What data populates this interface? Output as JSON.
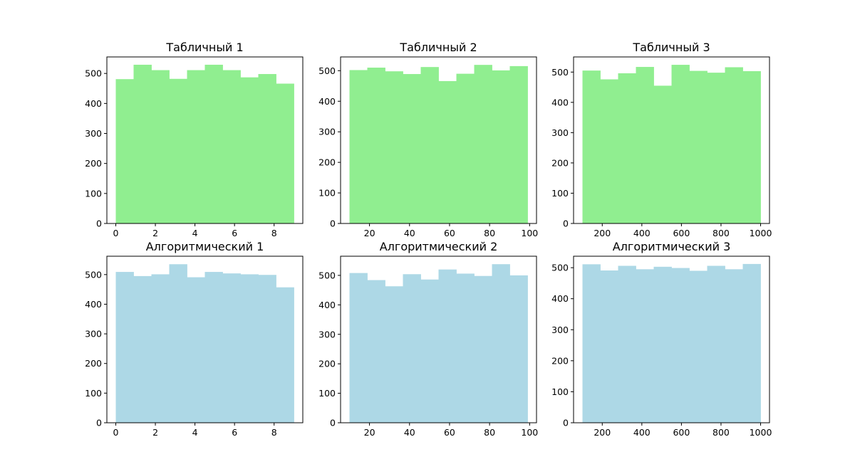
{
  "chart_data": [
    {
      "type": "bar",
      "title": "Табличный 1",
      "color": "#90ee90",
      "bin_edges": [
        0,
        0.9,
        1.8,
        2.7,
        3.6,
        4.5,
        5.4,
        6.3,
        7.2,
        8.1,
        9.0
      ],
      "values": [
        481,
        529,
        511,
        482,
        511,
        529,
        511,
        487,
        498,
        466
      ],
      "xlim": [
        -0.45,
        9.45
      ],
      "ylim": [
        0,
        555
      ],
      "xticks": [
        0,
        2,
        4,
        6,
        8
      ],
      "xtick_labels": [
        "0",
        "2",
        "4",
        "6",
        "8"
      ],
      "yticks": [
        0,
        100,
        200,
        300,
        400,
        500
      ],
      "ytick_labels": [
        "0",
        "100",
        "200",
        "300",
        "400",
        "500"
      ]
    },
    {
      "type": "bar",
      "title": "Табличный 2",
      "color": "#90ee90",
      "bin_edges": [
        10,
        18.9,
        27.8,
        36.7,
        45.6,
        54.5,
        63.4,
        72.3,
        81.2,
        90.1,
        99
      ],
      "values": [
        502,
        510,
        498,
        489,
        512,
        466,
        490,
        519,
        501,
        515
      ],
      "xlim": [
        5.55,
        103.45
      ],
      "ylim": [
        0,
        545
      ],
      "xticks": [
        20,
        40,
        60,
        80,
        100
      ],
      "xtick_labels": [
        "20",
        "40",
        "60",
        "80",
        "100"
      ],
      "yticks": [
        0,
        100,
        200,
        300,
        400,
        500
      ],
      "ytick_labels": [
        "0",
        "100",
        "200",
        "300",
        "400",
        "500"
      ]
    },
    {
      "type": "bar",
      "title": "Табличный 3",
      "color": "#90ee90",
      "bin_edges": [
        100,
        190,
        280,
        370,
        460,
        550,
        640,
        730,
        820,
        910,
        1000
      ],
      "values": [
        505,
        476,
        496,
        517,
        455,
        524,
        504,
        498,
        516,
        503
      ],
      "xlim": [
        55,
        1045
      ],
      "ylim": [
        0,
        550
      ],
      "xticks": [
        200,
        400,
        600,
        800,
        1000
      ],
      "xtick_labels": [
        "200",
        "400",
        "600",
        "800",
        "1000"
      ],
      "yticks": [
        0,
        100,
        200,
        300,
        400,
        500
      ],
      "ytick_labels": [
        "0",
        "100",
        "200",
        "300",
        "400",
        "500"
      ]
    },
    {
      "type": "bar",
      "title": "Алгоритмический 1",
      "color": "#add8e6",
      "bin_edges": [
        0,
        0.9,
        1.8,
        2.7,
        3.6,
        4.5,
        5.4,
        6.3,
        7.2,
        8.1,
        9.0
      ],
      "values": [
        509,
        495,
        501,
        535,
        491,
        509,
        504,
        501,
        499,
        457
      ],
      "xlim": [
        -0.45,
        9.45
      ],
      "ylim": [
        0,
        562
      ],
      "xticks": [
        0,
        2,
        4,
        6,
        8
      ],
      "xtick_labels": [
        "0",
        "2",
        "4",
        "6",
        "8"
      ],
      "yticks": [
        0,
        100,
        200,
        300,
        400,
        500
      ],
      "ytick_labels": [
        "0",
        "100",
        "200",
        "300",
        "400",
        "500"
      ]
    },
    {
      "type": "bar",
      "title": "Алгоритмический 2",
      "color": "#add8e6",
      "bin_edges": [
        10,
        18.9,
        27.8,
        36.7,
        45.6,
        54.5,
        63.4,
        72.3,
        81.2,
        90.1,
        99
      ],
      "values": [
        508,
        484,
        463,
        504,
        486,
        520,
        506,
        498,
        538,
        500
      ],
      "xlim": [
        5.55,
        103.45
      ],
      "ylim": [
        0,
        565
      ],
      "xticks": [
        20,
        40,
        60,
        80,
        100
      ],
      "xtick_labels": [
        "20",
        "40",
        "60",
        "80",
        "100"
      ],
      "yticks": [
        0,
        100,
        200,
        300,
        400,
        500
      ],
      "ytick_labels": [
        "0",
        "100",
        "200",
        "300",
        "400",
        "500"
      ]
    },
    {
      "type": "bar",
      "title": "Алгоритмический 3",
      "color": "#add8e6",
      "bin_edges": [
        100,
        190,
        280,
        370,
        460,
        550,
        640,
        730,
        820,
        910,
        1000
      ],
      "values": [
        511,
        491,
        506,
        495,
        503,
        499,
        490,
        506,
        495,
        512
      ],
      "xlim": [
        55,
        1045
      ],
      "ylim": [
        0,
        537
      ],
      "xticks": [
        200,
        400,
        600,
        800,
        1000
      ],
      "xtick_labels": [
        "200",
        "400",
        "600",
        "800",
        "1000"
      ],
      "yticks": [
        0,
        100,
        200,
        300,
        400,
        500
      ],
      "ytick_labels": [
        "0",
        "100",
        "200",
        "300",
        "400",
        "500"
      ]
    }
  ]
}
